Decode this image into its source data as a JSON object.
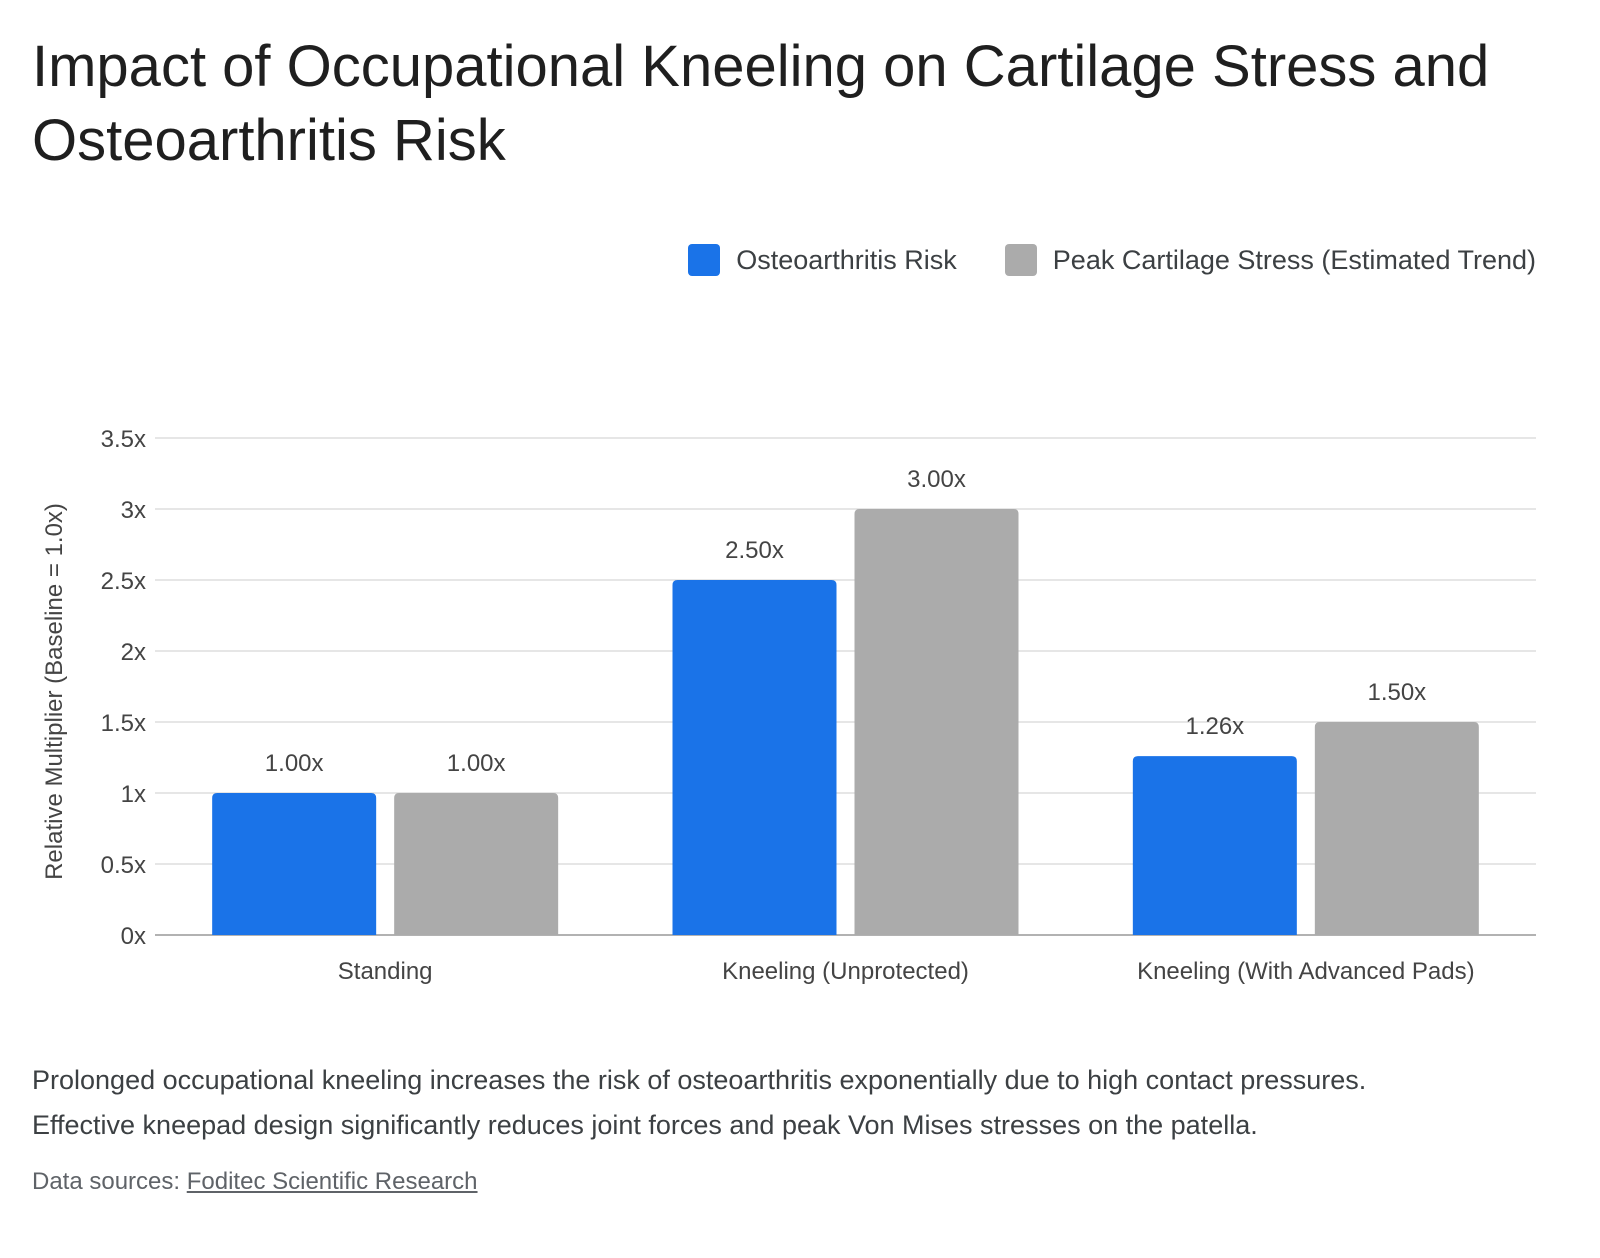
{
  "title": "Impact of Occupational Kneeling on Cartilage Stress and Osteoarthritis Risk",
  "caption_line1": "Prolonged occupational kneeling increases the risk of osteoarthritis exponentially due to high contact pressures.",
  "caption_line2": "Effective kneepad design significantly reduces joint forces and peak Von Mises stresses on the patella.",
  "sources_label": "Data sources: ",
  "sources_link": "Foditec Scientific Research",
  "colors": {
    "series1": "#1a73e8",
    "series2": "#ababab",
    "grid": "#cccccc",
    "axis_text": "#444444"
  },
  "chart_data": {
    "type": "bar",
    "categories": [
      "Standing",
      "Kneeling (Unprotected)",
      "Kneeling (With Advanced Pads)"
    ],
    "series": [
      {
        "name": "Osteoarthritis Risk",
        "values": [
          1.0,
          2.5,
          1.26
        ],
        "labels": [
          "1.00x",
          "2.50x",
          "1.26x"
        ]
      },
      {
        "name": "Peak Cartilage Stress (Estimated Trend)",
        "values": [
          1.0,
          3.0,
          1.5
        ],
        "labels": [
          "1.00x",
          "3.00x",
          "1.50x"
        ]
      }
    ],
    "ylabel": "Relative Multiplier (Baseline = 1.0x)",
    "ylim": [
      0,
      3.5
    ],
    "yticks": [
      0,
      0.5,
      1,
      1.5,
      2,
      2.5,
      3,
      3.5
    ],
    "ytick_labels": [
      "0x",
      "0.5x",
      "1x",
      "1.5x",
      "2x",
      "2.5x",
      "3x",
      "3.5x"
    ],
    "grid": true,
    "legend": "top-right"
  }
}
